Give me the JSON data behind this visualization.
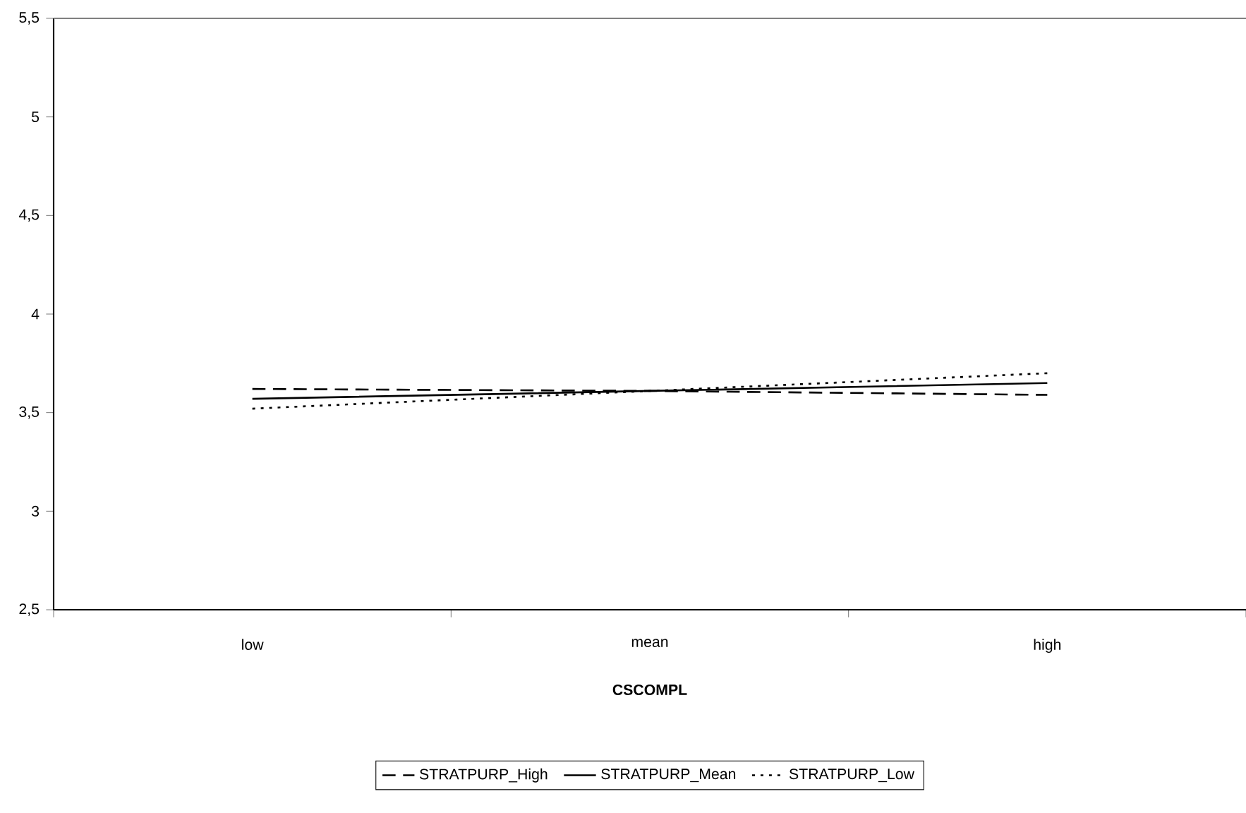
{
  "chart_data": {
    "type": "line",
    "xlabel": "CSCOMPL",
    "categories": [
      "low",
      "mean",
      "high"
    ],
    "series": [
      {
        "name": "STRATPURP_High",
        "color": "#000000",
        "line_style": "dashed",
        "values": [
          3.62,
          3.61,
          3.59
        ]
      },
      {
        "name": "STRATPURP_Mean",
        "color": "#000000",
        "line_style": "solid",
        "values": [
          3.57,
          3.61,
          3.65
        ]
      },
      {
        "name": "STRATPURP_Low",
        "color": "#000000",
        "line_style": "dotted",
        "values": [
          3.52,
          3.61,
          3.7
        ]
      }
    ],
    "ylim": [
      2.5,
      5.5
    ],
    "yticks": [
      {
        "value": 2.5,
        "label": "2,5"
      },
      3,
      {
        "value": 3.5,
        "label": "3,5"
      },
      4,
      {
        "value": 4.5,
        "label": "4,5"
      },
      5,
      {
        "value": 5.5,
        "label": "5,5"
      }
    ],
    "grid": false,
    "legend": "bottom",
    "marker": "none"
  }
}
